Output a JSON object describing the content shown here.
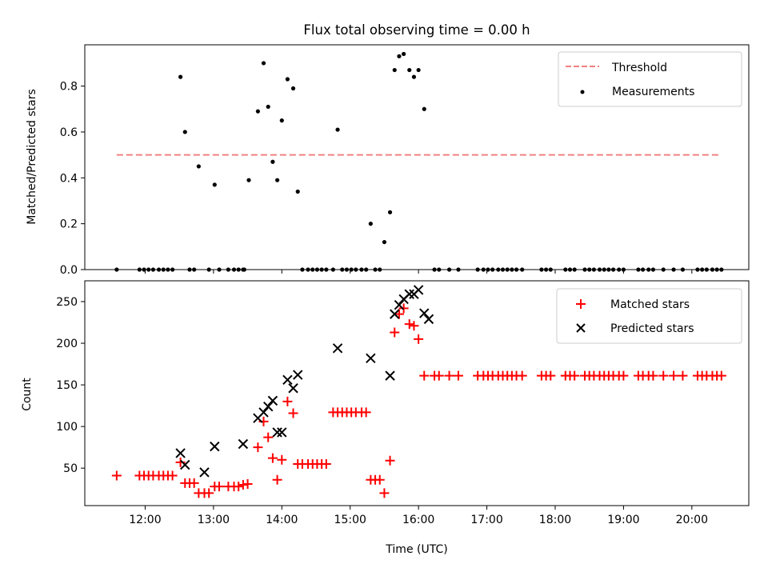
{
  "chart_data": {
    "title": "Flux total observing time = 0.00 h",
    "xlabel": "Time (UTC)",
    "xlim": [
      "11:07",
      "20:50"
    ],
    "xticks": [
      "12:00",
      "13:00",
      "14:00",
      "15:00",
      "16:00",
      "17:00",
      "18:00",
      "19:00",
      "20:00"
    ],
    "grid": false,
    "panels": [
      {
        "type": "scatter",
        "ylabel": "Matched/Predicted stars",
        "ylim": [
          0,
          0.98
        ],
        "yticks": [
          0.0,
          0.2,
          0.4,
          0.6,
          0.8
        ],
        "legend_position": "upper right",
        "threshold": {
          "name": "Threshold",
          "value": 0.5,
          "x_range": [
            "11:35",
            "20:25"
          ],
          "color": "#f08080"
        },
        "series": [
          {
            "name": "Measurements",
            "color": "#000000",
            "points": [
              [
                "11:35",
                0
              ],
              [
                "11:55",
                0
              ],
              [
                "11:59",
                0
              ],
              [
                "12:03",
                0
              ],
              [
                "12:07",
                0
              ],
              [
                "12:12",
                0
              ],
              [
                "12:16",
                0
              ],
              [
                "12:20",
                0
              ],
              [
                "12:24",
                0
              ],
              [
                "12:31",
                0.84
              ],
              [
                "12:35",
                0.6
              ],
              [
                "12:39",
                0
              ],
              [
                "12:43",
                0
              ],
              [
                "12:47",
                0.45
              ],
              [
                "12:56",
                0
              ],
              [
                "13:01",
                0.37
              ],
              [
                "13:05",
                0
              ],
              [
                "13:13",
                0
              ],
              [
                "13:18",
                0
              ],
              [
                "13:22",
                0
              ],
              [
                "13:26",
                0
              ],
              [
                "13:27",
                0
              ],
              [
                "13:31",
                0.39
              ],
              [
                "13:39",
                0.69
              ],
              [
                "13:44",
                0.9
              ],
              [
                "13:48",
                0.71
              ],
              [
                "13:52",
                0.47
              ],
              [
                "13:56",
                0.39
              ],
              [
                "14:00",
                0.65
              ],
              [
                "14:05",
                0.83
              ],
              [
                "14:10",
                0.79
              ],
              [
                "14:14",
                0.34
              ],
              [
                "14:18",
                0
              ],
              [
                "14:23",
                0
              ],
              [
                "14:27",
                0
              ],
              [
                "14:31",
                0
              ],
              [
                "14:35",
                0
              ],
              [
                "14:39",
                0
              ],
              [
                "14:45",
                0
              ],
              [
                "14:49",
                0.61
              ],
              [
                "14:53",
                0
              ],
              [
                "14:57",
                0
              ],
              [
                "15:01",
                0
              ],
              [
                "15:05",
                0
              ],
              [
                "15:10",
                0
              ],
              [
                "15:14",
                0
              ],
              [
                "15:18",
                0.2
              ],
              [
                "15:22",
                0
              ],
              [
                "15:26",
                0
              ],
              [
                "15:30",
                0.12
              ],
              [
                "15:35",
                0.25
              ],
              [
                "15:39",
                0.87
              ],
              [
                "15:43",
                0.93
              ],
              [
                "15:47",
                0.94
              ],
              [
                "15:52",
                0.87
              ],
              [
                "15:56",
                0.84
              ],
              [
                "16:00",
                0.87
              ],
              [
                "16:05",
                0.7
              ],
              [
                "16:14",
                0
              ],
              [
                "16:18",
                0
              ],
              [
                "16:27",
                0
              ],
              [
                "16:35",
                0
              ],
              [
                "16:52",
                0
              ],
              [
                "16:57",
                0
              ],
              [
                "17:01",
                0
              ],
              [
                "17:05",
                0
              ],
              [
                "17:10",
                0
              ],
              [
                "17:14",
                0
              ],
              [
                "17:18",
                0
              ],
              [
                "17:22",
                0
              ],
              [
                "17:26",
                0
              ],
              [
                "17:31",
                0
              ],
              [
                "17:48",
                0
              ],
              [
                "17:52",
                0
              ],
              [
                "17:56",
                0
              ],
              [
                "18:09",
                0
              ],
              [
                "18:13",
                0
              ],
              [
                "18:17",
                0
              ],
              [
                "18:26",
                0
              ],
              [
                "18:30",
                0
              ],
              [
                "18:34",
                0
              ],
              [
                "18:39",
                0
              ],
              [
                "18:43",
                0
              ],
              [
                "18:47",
                0
              ],
              [
                "18:51",
                0
              ],
              [
                "18:56",
                0
              ],
              [
                "19:00",
                0
              ],
              [
                "19:13",
                0
              ],
              [
                "19:17",
                0
              ],
              [
                "19:22",
                0
              ],
              [
                "19:26",
                0
              ],
              [
                "19:35",
                0
              ],
              [
                "19:44",
                0
              ],
              [
                "19:52",
                0
              ],
              [
                "20:05",
                0
              ],
              [
                "20:09",
                0
              ],
              [
                "20:13",
                0
              ],
              [
                "20:18",
                0
              ],
              [
                "20:22",
                0
              ],
              [
                "20:26",
                0
              ]
            ]
          }
        ]
      },
      {
        "type": "scatter",
        "ylabel": "Count",
        "ylim": [
          5,
          275
        ],
        "yticks": [
          50,
          100,
          150,
          200,
          250
        ],
        "legend_position": "upper right",
        "series": [
          {
            "name": "Matched stars",
            "marker": "+",
            "color": "#ff0000",
            "points": [
              [
                "11:35",
                41
              ],
              [
                "11:55",
                41
              ],
              [
                "11:59",
                41
              ],
              [
                "12:03",
                41
              ],
              [
                "12:07",
                41
              ],
              [
                "12:12",
                41
              ],
              [
                "12:16",
                41
              ],
              [
                "12:20",
                41
              ],
              [
                "12:24",
                41
              ],
              [
                "12:31",
                57
              ],
              [
                "12:35",
                32
              ],
              [
                "12:39",
                32
              ],
              [
                "12:43",
                32
              ],
              [
                "12:47",
                20
              ],
              [
                "12:52",
                20
              ],
              [
                "12:56",
                20
              ],
              [
                "13:01",
                28
              ],
              [
                "13:05",
                28
              ],
              [
                "13:13",
                28
              ],
              [
                "13:18",
                28
              ],
              [
                "13:22",
                28
              ],
              [
                "13:26",
                30
              ],
              [
                "13:30",
                31
              ],
              [
                "13:39",
                75
              ],
              [
                "13:44",
                106
              ],
              [
                "13:48",
                87
              ],
              [
                "13:52",
                62
              ],
              [
                "13:56",
                36
              ],
              [
                "14:00",
                60
              ],
              [
                "14:05",
                130
              ],
              [
                "14:10",
                116
              ],
              [
                "14:14",
                55
              ],
              [
                "14:18",
                55
              ],
              [
                "14:23",
                55
              ],
              [
                "14:27",
                55
              ],
              [
                "14:31",
                55
              ],
              [
                "14:35",
                55
              ],
              [
                "14:39",
                55
              ],
              [
                "14:45",
                117
              ],
              [
                "14:49",
                117
              ],
              [
                "14:53",
                117
              ],
              [
                "14:57",
                117
              ],
              [
                "15:01",
                117
              ],
              [
                "15:05",
                117
              ],
              [
                "15:10",
                117
              ],
              [
                "15:14",
                117
              ],
              [
                "15:18",
                36
              ],
              [
                "15:22",
                36
              ],
              [
                "15:26",
                36
              ],
              [
                "15:30",
                20
              ],
              [
                "15:35",
                59
              ],
              [
                "15:39",
                213
              ],
              [
                "15:43",
                235
              ],
              [
                "15:47",
                242
              ],
              [
                "15:52",
                223
              ],
              [
                "15:56",
                221
              ],
              [
                "16:00",
                205
              ],
              [
                "16:05",
                161
              ],
              [
                "16:14",
                161
              ],
              [
                "16:18",
                161
              ],
              [
                "16:27",
                161
              ],
              [
                "16:35",
                161
              ],
              [
                "16:52",
                161
              ],
              [
                "16:57",
                161
              ],
              [
                "17:01",
                161
              ],
              [
                "17:05",
                161
              ],
              [
                "17:10",
                161
              ],
              [
                "17:14",
                161
              ],
              [
                "17:18",
                161
              ],
              [
                "17:22",
                161
              ],
              [
                "17:26",
                161
              ],
              [
                "17:31",
                161
              ],
              [
                "17:48",
                161
              ],
              [
                "17:52",
                161
              ],
              [
                "17:56",
                161
              ],
              [
                "18:09",
                161
              ],
              [
                "18:13",
                161
              ],
              [
                "18:17",
                161
              ],
              [
                "18:26",
                161
              ],
              [
                "18:30",
                161
              ],
              [
                "18:34",
                161
              ],
              [
                "18:39",
                161
              ],
              [
                "18:43",
                161
              ],
              [
                "18:47",
                161
              ],
              [
                "18:51",
                161
              ],
              [
                "18:56",
                161
              ],
              [
                "19:00",
                161
              ],
              [
                "19:13",
                161
              ],
              [
                "19:17",
                161
              ],
              [
                "19:22",
                161
              ],
              [
                "19:26",
                161
              ],
              [
                "19:35",
                161
              ],
              [
                "19:44",
                161
              ],
              [
                "19:52",
                161
              ],
              [
                "20:05",
                161
              ],
              [
                "20:09",
                161
              ],
              [
                "20:13",
                161
              ],
              [
                "20:18",
                161
              ],
              [
                "20:22",
                161
              ],
              [
                "20:26",
                161
              ]
            ]
          },
          {
            "name": "Predicted stars",
            "marker": "x",
            "color": "#000000",
            "points": [
              [
                "12:31",
                68
              ],
              [
                "12:35",
                54
              ],
              [
                "12:52",
                45
              ],
              [
                "13:01",
                76
              ],
              [
                "13:26",
                79
              ],
              [
                "13:39",
                110
              ],
              [
                "13:44",
                117
              ],
              [
                "13:48",
                124
              ],
              [
                "13:52",
                131
              ],
              [
                "13:56",
                93
              ],
              [
                "14:00",
                93
              ],
              [
                "14:05",
                156
              ],
              [
                "14:10",
                146
              ],
              [
                "14:14",
                162
              ],
              [
                "14:49",
                194
              ],
              [
                "15:18",
                182
              ],
              [
                "15:35",
                161
              ],
              [
                "15:39",
                235
              ],
              [
                "15:43",
                246
              ],
              [
                "15:47",
                253
              ],
              [
                "15:52",
                259
              ],
              [
                "15:56",
                259
              ],
              [
                "16:00",
                264
              ],
              [
                "16:05",
                236
              ],
              [
                "16:09",
                229
              ]
            ]
          }
        ]
      }
    ]
  }
}
